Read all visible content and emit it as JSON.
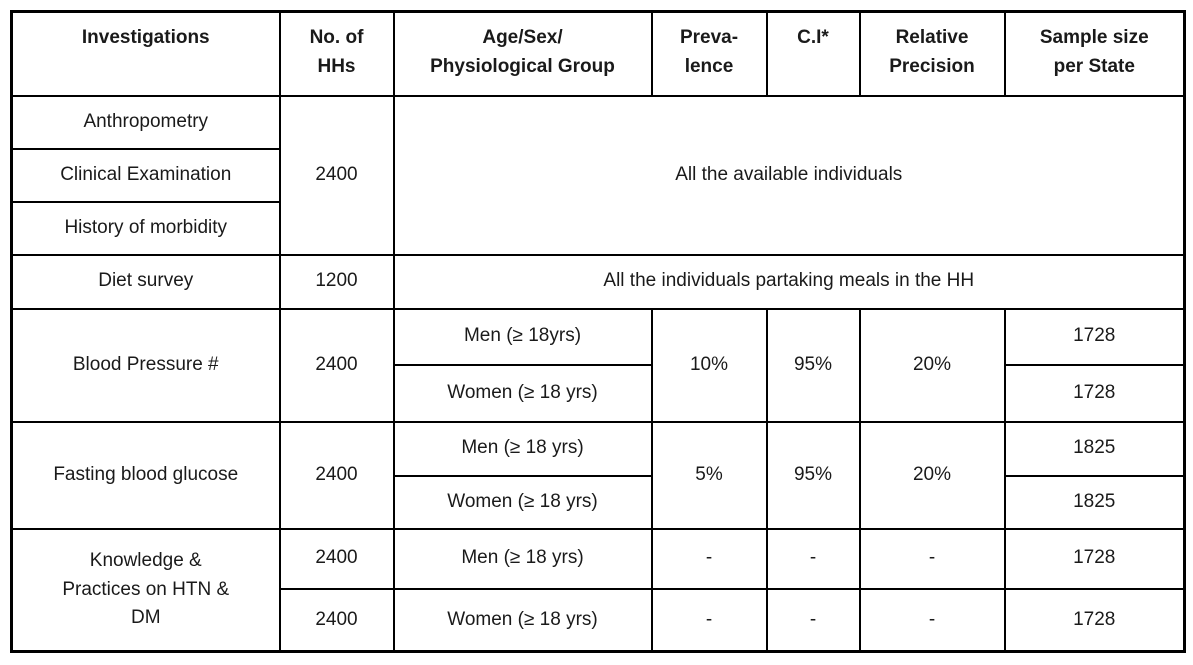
{
  "page": {
    "background_color": "#ffffff",
    "border_color": "#000000",
    "text_color": "#1a1a1a"
  },
  "table": {
    "headers": [
      {
        "name": "investigations",
        "lines": [
          "Investigations"
        ]
      },
      {
        "name": "no_of_hhs",
        "lines": [
          "No. of",
          "HHs"
        ]
      },
      {
        "name": "age_sex_group",
        "lines": [
          "Age/Sex/",
          "Physiological Group"
        ]
      },
      {
        "name": "prevalence",
        "lines": [
          "Preva-",
          "lence"
        ]
      },
      {
        "name": "ci",
        "lines": [
          "C.I*"
        ]
      },
      {
        "name": "relative_precision",
        "lines": [
          "Relative",
          "Precision"
        ]
      },
      {
        "name": "sample_size",
        "lines": [
          "Sample size",
          "per State"
        ]
      }
    ],
    "sections": {
      "census": {
        "investigations": [
          "Anthropometry",
          "Clinical Examination",
          "History of morbidity"
        ],
        "hhs": "2400",
        "note": "All the available individuals"
      },
      "diet": {
        "investigation": "Diet survey",
        "hhs": "1200",
        "note": "All the individuals partaking meals in the HH"
      },
      "blood_pressure": {
        "investigation": "Blood Pressure #",
        "hhs": "2400",
        "prevalence": "10%",
        "ci": "95%",
        "precision": "20%",
        "rows": [
          {
            "group": "Men (≥ 18yrs)",
            "sample": "1728"
          },
          {
            "group": "Women (≥ 18 yrs)",
            "sample": "1728"
          }
        ]
      },
      "fasting_glucose": {
        "investigation": "Fasting blood glucose",
        "hhs": "2400",
        "prevalence": "5%",
        "ci": "95%",
        "precision": "20%",
        "rows": [
          {
            "group": "Men (≥ 18 yrs)",
            "sample": "1825"
          },
          {
            "group": "Women (≥ 18 yrs)",
            "sample": "1825"
          }
        ]
      },
      "knowledge": {
        "investigation_lines": [
          "Knowledge &",
          "Practices on HTN &",
          "DM"
        ],
        "rows": [
          {
            "hhs": "2400",
            "group": "Men (≥ 18 yrs)",
            "prevalence": "-",
            "ci": "-",
            "precision": "-",
            "sample": "1728"
          },
          {
            "hhs": "2400",
            "group": "Women (≥ 18 yrs)",
            "prevalence": "-",
            "ci": "-",
            "precision": "-",
            "sample": "1728"
          }
        ]
      }
    }
  }
}
